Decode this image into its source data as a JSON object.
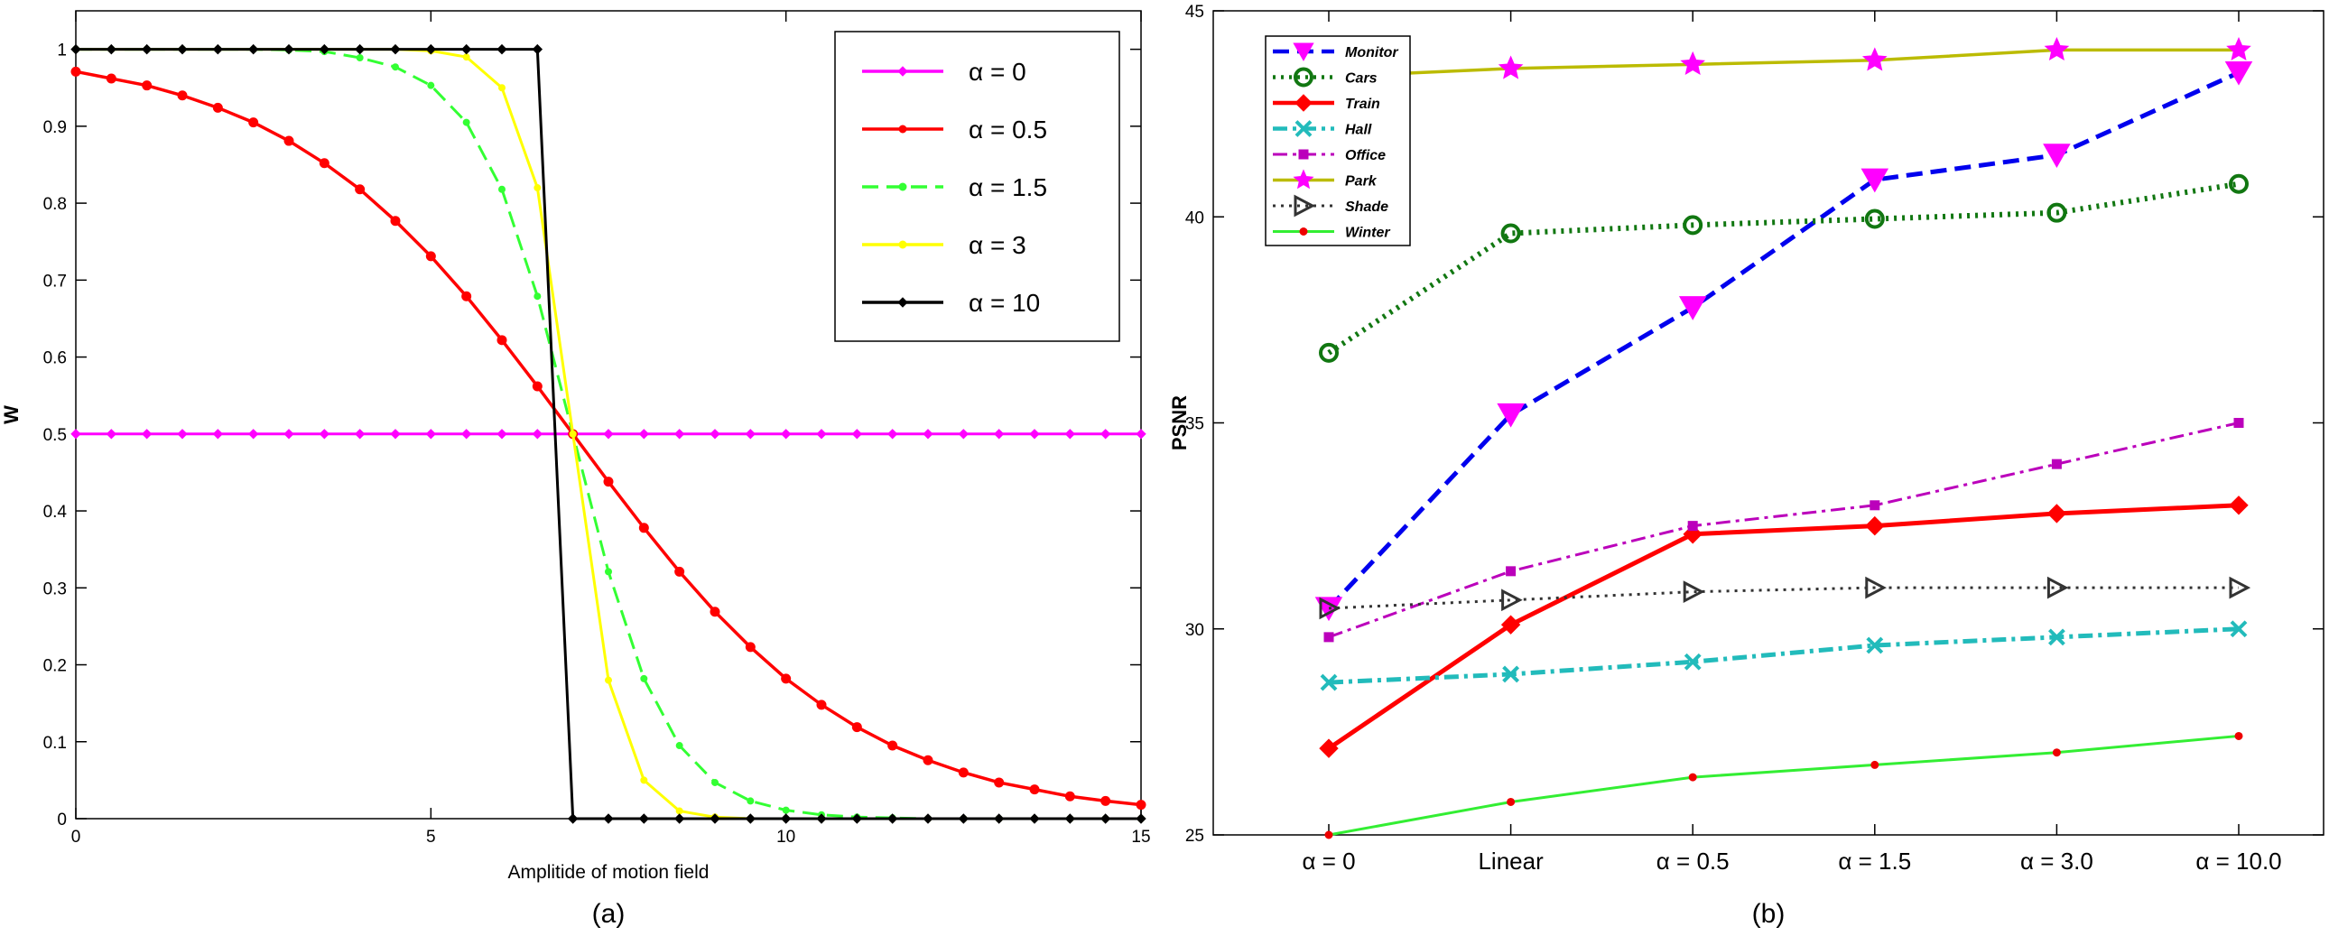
{
  "chart_data": [
    {
      "type": "line",
      "panel_label": "(a)",
      "xlabel": "Amplitide of motion field",
      "ylabel": "W",
      "xlim": [
        0,
        15
      ],
      "ylim": [
        0,
        1.05
      ],
      "x_ticks": [
        0,
        5,
        10,
        15
      ],
      "y_ticks": [
        0,
        0.1,
        0.2,
        0.3,
        0.4,
        0.5,
        0.6,
        0.7,
        0.8,
        0.9,
        1
      ],
      "legend_position": "top-right",
      "x": [
        0,
        0.5,
        1,
        1.5,
        2,
        2.5,
        3,
        3.5,
        4,
        4.5,
        5,
        5.5,
        6,
        6.5,
        7,
        7.5,
        8,
        8.5,
        9,
        9.5,
        10,
        10.5,
        11,
        11.5,
        12,
        12.5,
        13,
        13.5,
        14,
        14.5,
        15
      ],
      "series": [
        {
          "name": "α = 0",
          "color": "#ff00ff",
          "marker": "diamond",
          "dash": "solid",
          "values": [
            0.5,
            0.5,
            0.5,
            0.5,
            0.5,
            0.5,
            0.5,
            0.5,
            0.5,
            0.5,
            0.5,
            0.5,
            0.5,
            0.5,
            0.5,
            0.5,
            0.5,
            0.5,
            0.5,
            0.5,
            0.5,
            0.5,
            0.5,
            0.5,
            0.5,
            0.5,
            0.5,
            0.5,
            0.5,
            0.5,
            0.5
          ]
        },
        {
          "name": "α = 0.5",
          "color": "#ff0000",
          "marker": "dot",
          "dash": "solid",
          "values": [
            0.971,
            0.962,
            0.953,
            0.94,
            0.924,
            0.905,
            0.881,
            0.852,
            0.818,
            0.777,
            0.731,
            0.679,
            0.622,
            0.562,
            0.5,
            0.438,
            0.378,
            0.321,
            0.269,
            0.223,
            0.182,
            0.148,
            0.119,
            0.095,
            0.076,
            0.06,
            0.047,
            0.038,
            0.029,
            0.023,
            0.018
          ]
        },
        {
          "name": "α = 1.5",
          "color": "#33ff33",
          "marker": "dot",
          "dash": "dashed",
          "values": [
            1,
            1,
            1,
            1,
            1,
            1,
            0.999,
            0.997,
            0.989,
            0.977,
            0.953,
            0.905,
            0.818,
            0.679,
            0.5,
            0.321,
            0.182,
            0.095,
            0.047,
            0.023,
            0.011,
            0.005,
            0.002,
            0.001,
            0,
            0,
            0,
            0,
            0,
            0,
            0
          ]
        },
        {
          "name": "α = 3",
          "color": "#ffff00",
          "marker": "dot",
          "dash": "solid",
          "values": [
            1,
            1,
            1,
            1,
            1,
            1,
            1,
            1,
            1,
            1,
            0.998,
            0.99,
            0.95,
            0.82,
            0.5,
            0.18,
            0.05,
            0.01,
            0.002,
            0,
            0,
            0,
            0,
            0,
            0,
            0,
            0,
            0,
            0,
            0,
            0
          ]
        },
        {
          "name": "α = 10",
          "color": "#000000",
          "marker": "diamond",
          "dash": "solid",
          "values": [
            1,
            1,
            1,
            1,
            1,
            1,
            1,
            1,
            1,
            1,
            1,
            1,
            1,
            1,
            0,
            0,
            0,
            0,
            0,
            0,
            0,
            0,
            0,
            0,
            0,
            0,
            0,
            0,
            0,
            0,
            0
          ]
        }
      ]
    },
    {
      "type": "line",
      "panel_label": "(b)",
      "xlabel": "",
      "ylabel": "PSNR",
      "ylim": [
        25,
        45
      ],
      "y_ticks": [
        25,
        30,
        35,
        40,
        45
      ],
      "categories": [
        "α = 0",
        "Linear",
        "α = 0.5",
        "α = 1.5",
        "α = 3.0",
        "α = 10.0"
      ],
      "legend_position": "top-left",
      "series": [
        {
          "name": "Monitor",
          "color": "#0000ee",
          "marker": "triangle-down",
          "marker_color": "#ff00ff",
          "dash": "dashed",
          "values": [
            30.5,
            35.2,
            37.8,
            40.9,
            41.5,
            43.5
          ]
        },
        {
          "name": "Cars",
          "color": "#117711",
          "marker": "circle",
          "marker_color": "#117711",
          "dash": "dotted",
          "values": [
            36.7,
            39.6,
            39.8,
            39.95,
            40.1,
            40.8
          ]
        },
        {
          "name": "Train",
          "color": "#ff0000",
          "marker": "diamond",
          "marker_color": "#ff0000",
          "dash": "solid",
          "values": [
            27.1,
            30.1,
            32.3,
            32.5,
            32.8,
            33.0
          ]
        },
        {
          "name": "Hall",
          "color": "#22bbbb",
          "marker": "x",
          "marker_color": "#22bbbb",
          "dash": "dashdot",
          "values": [
            28.7,
            28.9,
            29.2,
            29.6,
            29.8,
            30.0
          ]
        },
        {
          "name": "Office",
          "color": "#bb00bb",
          "marker": "square",
          "marker_color": "#bb00bb",
          "dash": "dashdot",
          "values": [
            29.8,
            31.4,
            32.5,
            33.0,
            34.0,
            35.0
          ]
        },
        {
          "name": "Park",
          "color": "#bbbb00",
          "marker": "star",
          "marker_color": "#ff00ff",
          "dash": "solid",
          "values": [
            43.4,
            43.6,
            43.7,
            43.8,
            44.05,
            44.05
          ]
        },
        {
          "name": "Shade",
          "color": "#333333",
          "marker": "triangle-right",
          "marker_color": "#333333",
          "dash": "dotted",
          "values": [
            30.5,
            30.7,
            30.9,
            31.0,
            31.0,
            31.0
          ]
        },
        {
          "name": "Winter",
          "color": "#33ee33",
          "marker": "dot",
          "marker_color": "#ee0000",
          "dash": "solid",
          "values": [
            25.0,
            25.8,
            26.4,
            26.7,
            27.0,
            27.4
          ]
        }
      ]
    }
  ]
}
